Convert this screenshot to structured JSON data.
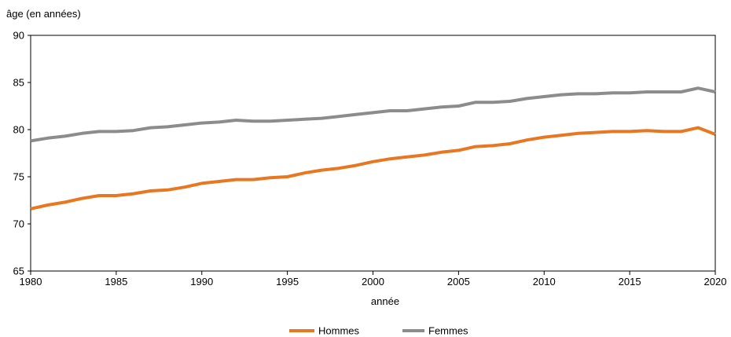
{
  "chart_data": {
    "type": "line",
    "ylabel": "âge (en années)",
    "xlabel": "année",
    "ylim": [
      65,
      90
    ],
    "yticks": [
      65,
      70,
      75,
      80,
      85,
      90
    ],
    "xlim": [
      1980,
      2020
    ],
    "xticks": [
      1980,
      1985,
      1990,
      1995,
      2000,
      2005,
      2010,
      2015,
      2020
    ],
    "grid": false,
    "legend_position": "bottom-center",
    "x": [
      1980,
      1981,
      1982,
      1983,
      1984,
      1985,
      1986,
      1987,
      1988,
      1989,
      1990,
      1991,
      1992,
      1993,
      1994,
      1995,
      1996,
      1997,
      1998,
      1999,
      2000,
      2001,
      2002,
      2003,
      2004,
      2005,
      2006,
      2007,
      2008,
      2009,
      2010,
      2011,
      2012,
      2013,
      2014,
      2015,
      2016,
      2017,
      2018,
      2019,
      2020
    ],
    "series": [
      {
        "name": "Hommes",
        "color": "#E87722",
        "values": [
          71.6,
          72.0,
          72.3,
          72.7,
          73.0,
          73.0,
          73.2,
          73.5,
          73.6,
          73.9,
          74.3,
          74.5,
          74.7,
          74.7,
          74.9,
          75.0,
          75.4,
          75.7,
          75.9,
          76.2,
          76.6,
          76.9,
          77.1,
          77.3,
          77.6,
          77.8,
          78.2,
          78.3,
          78.5,
          78.9,
          79.2,
          79.4,
          79.6,
          79.7,
          79.8,
          79.8,
          79.9,
          79.8,
          79.8,
          80.2,
          79.5
        ]
      },
      {
        "name": "Femmes",
        "color": "#8C8C8C",
        "values": [
          78.8,
          79.1,
          79.3,
          79.6,
          79.8,
          79.8,
          79.9,
          80.2,
          80.3,
          80.5,
          80.7,
          80.8,
          81.0,
          80.9,
          80.9,
          81.0,
          81.1,
          81.2,
          81.4,
          81.6,
          81.8,
          82.0,
          82.0,
          82.2,
          82.4,
          82.5,
          82.9,
          82.9,
          83.0,
          83.3,
          83.5,
          83.7,
          83.8,
          83.8,
          83.9,
          83.9,
          84.0,
          84.0,
          84.0,
          84.4,
          84.0
        ]
      }
    ]
  }
}
